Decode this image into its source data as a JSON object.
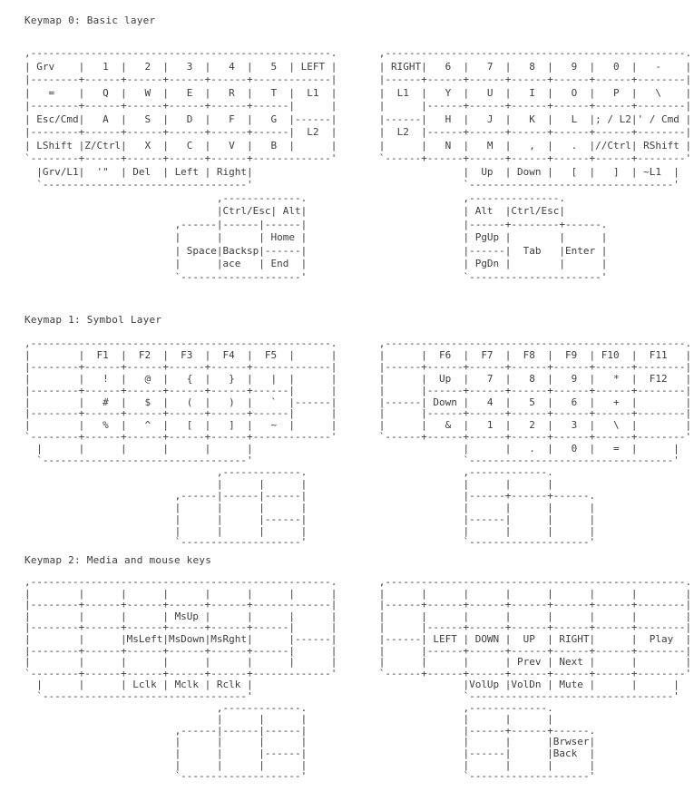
{
  "colors": {
    "background": "#ffffff",
    "text": "#3d3d3d"
  },
  "sections": [
    {
      "title": "Keymap 0: Basic layer",
      "lines": [
        ",--------------------------------------------------.       ,--------------------------------------------------.",
        "| Grv    |   1  |   2  |   3  |   4  |   5  | LEFT |       | RIGHT|   6  |   7  |   8  |   9  |   0  |   -    |",
        "|--------+------+------+------+------+-------------|       |------+------+------+------+------+------+--------|",
        "|   =    |   Q  |   W  |   E  |   R  |   T  |  L1  |       |  L1  |   Y  |   U  |   I  |   O  |   P  |   \\    |",
        "|--------+------+------+------+------+------|      |       |      |------+------+------+------+------+--------|",
        "| Esc/Cmd|   A  |   S  |   D  |   F  |   G  |------|       |------|   H  |   J  |   K  |   L  |; / L2|' / Cmd |",
        "|--------+------+------+------+------+------|  L2  |       |  L2  |------+------+------+------+------+--------|",
        "| LShift |Z/Ctrl|   X  |   C  |   V  |   B  |      |       |      |   N  |   M  |   ,  |   .  |//Ctrl| RShift |",
        "`--------+------+------+------+------+-------------'       `------+------+------+------+------+------+--------'",
        "  |Grv/L1|  '\"  | Del  | Left | Right|                                   |  Up  | Down |   [  |   ]  | ~L1  |",
        "  `----------------------------------'                                   `----------------------------------'",
        "                                ,-------------.                          ,---------------.",
        "                                |Ctrl/Esc| Alt|                          | Alt  |Ctrl/Esc|",
        "                         ,------|------|------|                          |------+--------+------.",
        "                         |      |      | Home |                          | PgUp |        |      |",
        "                         | Space|Backsp|------|                          |------|  Tab   |Enter |",
        "                         |      |ace   | End  |                          | PgDn |        |      |",
        "                         `--------------------'                          `----------------------'"
      ]
    },
    {
      "title": "Keymap 1: Symbol Layer",
      "lines": [
        ",--------------------------------------------------.       ,--------------------------------------------------.",
        "|        |  F1  |  F2  |  F3  |  F4  |  F5  |      |       |      |  F6  |  F7  |  F8  |  F9  | F10  |  F11   |",
        "|--------+------+------+------+------+-------------|       |------+------+------+------+------+------+--------|",
        "|        |   !  |   @  |   {  |   }  |   |  |      |       |      |  Up  |   7  |   8  |   9  |   *  |  F12   |",
        "|--------+------+------+------+------+------|      |       |      |------+------+------+------+------+--------|",
        "|        |   #  |   $  |   (  |   )  |   `  |------|       |------| Down |   4  |   5  |   6  |   +  |        |",
        "|--------+------+------+------+------+------|      |       |      |------+------+------+------+------+--------|",
        "|        |   %  |   ^  |   [  |   ]  |   ~  |      |       |      |   &  |   1  |   2  |   3  |   \\  |        |",
        "`--------+------+------+------+------+-------------'       `------+------+------+------+------+------+--------'",
        "  |      |      |      |      |      |                                   |      |   .  |   0  |   =  |      |",
        "  `----------------------------------'                                   `----------------------------------'",
        "                                ,-------------.                          ,-------------.",
        "                                |      |      |                          |      |      |",
        "                         ,------|------|------|                          |------+------+------.",
        "                         |      |      |      |                          |      |      |      |",
        "                         |      |      |------|                          |------|      |      |",
        "                         |      |      |      |                          |      |      |      |",
        "                         `--------------------'                          `--------------------'"
      ]
    },
    {
      "title": "Keymap 2: Media and mouse keys",
      "lines": [
        ",--------------------------------------------------.       ,--------------------------------------------------.",
        "|        |      |      |      |      |      |      |       |      |      |      |      |      |      |        |",
        "|--------+------+------+------+------+-------------|       |------+------+------+------+------+------+--------|",
        "|        |      |      | MsUp |      |      |      |       |      |      |      |      |      |      |        |",
        "|--------+------+------+------+------+------|      |       |      |------+------+------+------+------+--------|",
        "|        |      |MsLeft|MsDown|MsRght|      |------|       |------| LEFT | DOWN |  UP  | RIGHT|      |  Play  |",
        "|--------+------+------+------+------+------|      |       |      |------+------+------+------+------+--------|",
        "|        |      |      |      |      |      |      |       |      |      |      | Prev | Next |      |        |",
        "`--------+------+------+------+------+-------------'       `------+------+------+------+------+------+--------'",
        "  |      |      | Lclk | Mclk | Rclk |                                   |VolUp |VolDn | Mute |      |      |",
        "  `----------------------------------'                                   `----------------------------------'",
        "                                ,-------------.                          ,-------------.",
        "                                |      |      |                          |      |      |",
        "                         ,------|------|------|                          |------+------+------.",
        "                         |      |      |      |                          |      |      |Brwser|",
        "                         |      |      |------|                          |------|      |Back  |",
        "                         |      |      |      |                          |      |      |      |",
        "                         `--------------------'                          `--------------------'"
      ]
    }
  ]
}
